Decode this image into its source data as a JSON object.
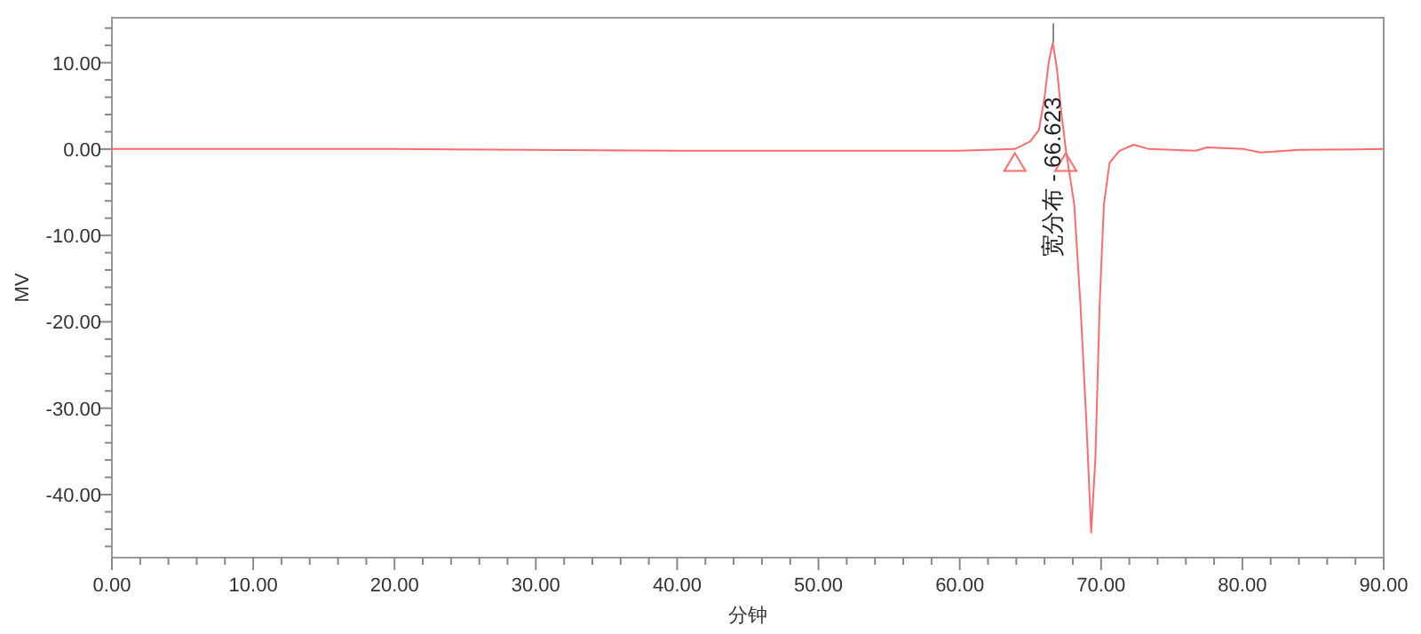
{
  "chart_data": {
    "type": "line",
    "xlabel": "分钟",
    "ylabel": "MV",
    "xlim": [
      0,
      90
    ],
    "ylim": [
      -47.3,
      15.2
    ],
    "xticks": [
      {
        "value": 0,
        "label": "0.00"
      },
      {
        "value": 10,
        "label": "10.00"
      },
      {
        "value": 20,
        "label": "20.00"
      },
      {
        "value": 30,
        "label": "30.00"
      },
      {
        "value": 40,
        "label": "40.00"
      },
      {
        "value": 50,
        "label": "50.00"
      },
      {
        "value": 60,
        "label": "60.00"
      },
      {
        "value": 70,
        "label": "70.00"
      },
      {
        "value": 80,
        "label": "80.00"
      },
      {
        "value": 90,
        "label": "90.00"
      },
      {
        "value": 2,
        "label": null
      },
      {
        "value": 4,
        "label": null
      },
      {
        "value": 6,
        "label": null
      },
      {
        "value": 8,
        "label": null
      },
      {
        "value": 12,
        "label": null
      },
      {
        "value": 14,
        "label": null
      },
      {
        "value": 16,
        "label": null
      },
      {
        "value": 18,
        "label": null
      },
      {
        "value": 22,
        "label": null
      },
      {
        "value": 24,
        "label": null
      },
      {
        "value": 26,
        "label": null
      },
      {
        "value": 28,
        "label": null
      },
      {
        "value": 32,
        "label": null
      },
      {
        "value": 34,
        "label": null
      },
      {
        "value": 36,
        "label": null
      },
      {
        "value": 38,
        "label": null
      },
      {
        "value": 42,
        "label": null
      },
      {
        "value": 44,
        "label": null
      },
      {
        "value": 46,
        "label": null
      },
      {
        "value": 48,
        "label": null
      },
      {
        "value": 52,
        "label": null
      },
      {
        "value": 54,
        "label": null
      },
      {
        "value": 56,
        "label": null
      },
      {
        "value": 58,
        "label": null
      },
      {
        "value": 62,
        "label": null
      },
      {
        "value": 64,
        "label": null
      },
      {
        "value": 66,
        "label": null
      },
      {
        "value": 68,
        "label": null
      },
      {
        "value": 72,
        "label": null
      },
      {
        "value": 74,
        "label": null
      },
      {
        "value": 76,
        "label": null
      },
      {
        "value": 78,
        "label": null
      },
      {
        "value": 82,
        "label": null
      },
      {
        "value": 84,
        "label": null
      },
      {
        "value": 86,
        "label": null
      },
      {
        "value": 88,
        "label": null
      }
    ],
    "yticks": [
      {
        "value": 10,
        "label": "10.00"
      },
      {
        "value": 0,
        "label": "0.00"
      },
      {
        "value": -10,
        "label": "-10.00"
      },
      {
        "value": -20,
        "label": "-20.00"
      },
      {
        "value": -30,
        "label": "-30.00"
      },
      {
        "value": -40,
        "label": "-40.00"
      },
      {
        "value": 14,
        "label": null
      },
      {
        "value": 12,
        "label": null
      },
      {
        "value": 8,
        "label": null
      },
      {
        "value": 6,
        "label": null
      },
      {
        "value": 4,
        "label": null
      },
      {
        "value": 2,
        "label": null
      },
      {
        "value": -2,
        "label": null
      },
      {
        "value": -4,
        "label": null
      },
      {
        "value": -6,
        "label": null
      },
      {
        "value": -8,
        "label": null
      },
      {
        "value": -12,
        "label": null
      },
      {
        "value": -14,
        "label": null
      },
      {
        "value": -16,
        "label": null
      },
      {
        "value": -18,
        "label": null
      },
      {
        "value": -22,
        "label": null
      },
      {
        "value": -24,
        "label": null
      },
      {
        "value": -26,
        "label": null
      },
      {
        "value": -28,
        "label": null
      },
      {
        "value": -32,
        "label": null
      },
      {
        "value": -34,
        "label": null
      },
      {
        "value": -36,
        "label": null
      },
      {
        "value": -38,
        "label": null
      },
      {
        "value": -42,
        "label": null
      },
      {
        "value": -44,
        "label": null
      },
      {
        "value": -46,
        "label": null
      }
    ],
    "grid": false,
    "series": [
      {
        "color": "#ff6b6b",
        "marker": "none",
        "x": [
          0,
          20,
          40,
          50,
          60,
          63.9,
          65.0,
          65.6,
          66.0,
          66.3,
          66.58,
          66.87,
          67.16,
          67.5,
          68.1,
          68.54,
          68.96,
          69.3,
          69.6,
          69.9,
          70.2,
          70.6,
          71.3,
          72.3,
          73.4,
          76.7,
          77.5,
          80.1,
          81.3,
          84,
          90
        ],
        "values": [
          0,
          0,
          -0.2,
          -0.2,
          -0.2,
          0,
          0.9,
          2.2,
          6.0,
          10.1,
          12.3,
          9.4,
          4.6,
          0,
          -6.4,
          -18.0,
          -31.6,
          -44.4,
          -35.7,
          -18.0,
          -6.4,
          -1.6,
          -0.2,
          0.5,
          0,
          -0.2,
          0.2,
          0,
          -0.4,
          -0.1,
          0
        ]
      },
      {
        "type": "scatter",
        "color": "#ff6b6b",
        "marker": "triangle",
        "x": [
          63.9,
          67.5
        ],
        "values": [
          -1.7,
          -1.7
        ]
      }
    ],
    "annotations": [
      {
        "text": "宽分布 - 66.623",
        "x": 66.623,
        "y": 12.3
      }
    ]
  }
}
